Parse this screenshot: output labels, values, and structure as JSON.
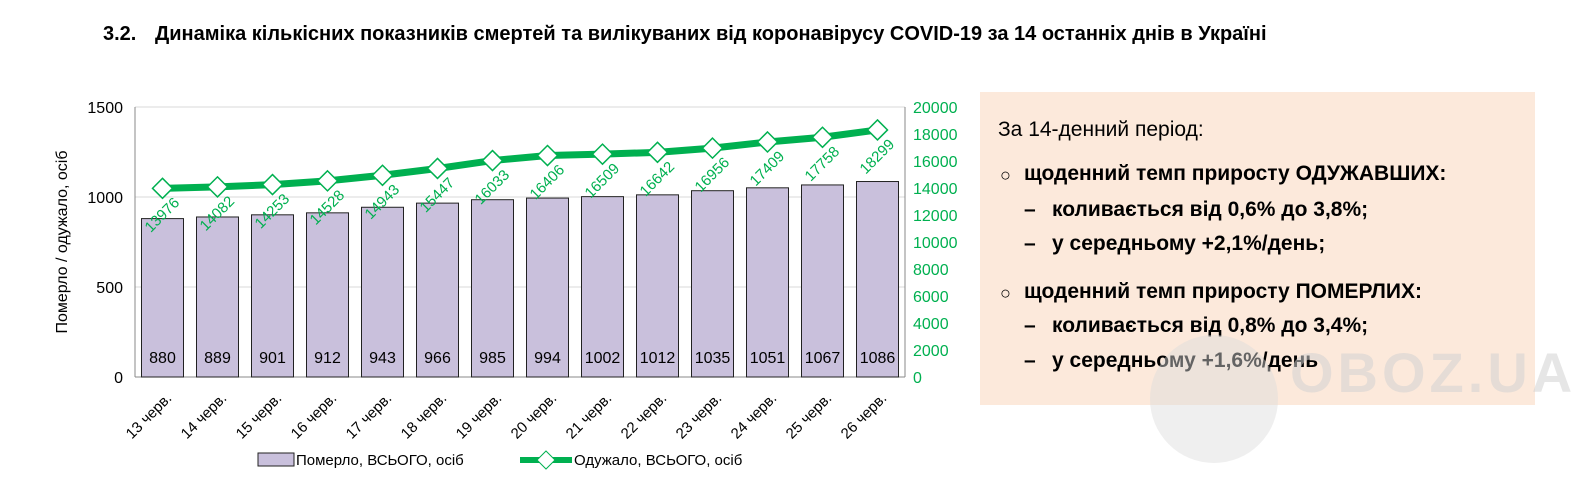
{
  "title": {
    "number": "3.2.",
    "text": "Динаміка кількісних показників смертей та вилікуваних від коронавірусу COVID-19 за 14 останніх днів в Україні"
  },
  "summary": {
    "heading": "За 14-денний період:",
    "sections": [
      {
        "title": "щоденний темп приросту ОДУЖАВШИХ:",
        "items": [
          "коливається від 0,6% до 3,8%;",
          "у середньому +2,1%/день;"
        ]
      },
      {
        "title": "щоденний темп приросту ПОМЕРЛИХ:",
        "items": [
          "коливається від 0,8% до 3,4%;",
          "у середньому +1,6%/день"
        ]
      }
    ],
    "bullet": "○",
    "dash": "–",
    "background": "#fce9db"
  },
  "watermark": "OBOZ.UA",
  "chart_data": {
    "type": "bar+line",
    "categories": [
      "13 черв.",
      "14 черв.",
      "15 черв.",
      "16 черв.",
      "17 черв.",
      "18 черв.",
      "19 черв.",
      "20 черв.",
      "21 черв.",
      "22 черв.",
      "23 черв.",
      "24 черв.",
      "25 черв.",
      "26 черв."
    ],
    "series": [
      {
        "name": "Померло, ВСЬОГО, осіб",
        "type": "bar",
        "axis": "left",
        "color": "#c9c0dc",
        "values": [
          880,
          889,
          901,
          912,
          943,
          966,
          985,
          994,
          1002,
          1012,
          1035,
          1051,
          1067,
          1086
        ]
      },
      {
        "name": "Одужало, ВСЬОГО, осіб",
        "type": "line",
        "axis": "right",
        "color": "#00b050",
        "marker": "diamond",
        "values": [
          13976,
          14082,
          14253,
          14528,
          14943,
          15447,
          16033,
          16406,
          16509,
          16642,
          16956,
          17409,
          17758,
          18299
        ]
      }
    ],
    "ylabel": "Померло / одужало, осіб",
    "ylim": [
      0,
      1500
    ],
    "yticks": [
      0,
      500,
      1000,
      1500
    ],
    "y2lim": [
      0,
      20000
    ],
    "y2ticks": [
      0,
      2000,
      4000,
      6000,
      8000,
      10000,
      12000,
      14000,
      16000,
      18000,
      20000
    ],
    "grid": "horizontal major (left axis)",
    "legend": "bottom"
  }
}
